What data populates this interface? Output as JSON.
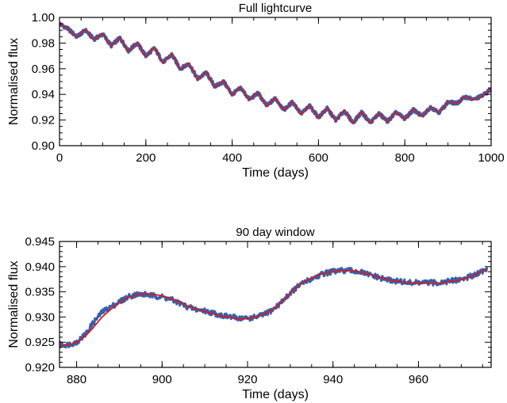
{
  "colors": {
    "observed": "#3a5fa8",
    "model": "#cc1f2a",
    "axis": "#000000",
    "background": "#ffffff"
  },
  "chart_data": [
    {
      "type": "line",
      "title": "Full lightcurve",
      "xlabel": "Time (days)",
      "ylabel": "Normalised flux",
      "xlim": [
        0,
        1000
      ],
      "ylim": [
        0.9,
        1.0
      ],
      "xticks": [
        0,
        200,
        400,
        600,
        800,
        1000
      ],
      "xtick_labels": [
        "0",
        "200",
        "400",
        "600",
        "800",
        "1000"
      ],
      "yticks": [
        0.9,
        0.92,
        0.94,
        0.96,
        0.98,
        1.0
      ],
      "ytick_labels": [
        "0.90",
        "0.92",
        "0.94",
        "0.96",
        "0.98",
        "1.00"
      ],
      "grid": false,
      "series": [
        {
          "kind": "observed",
          "x": [
            0,
            20,
            40,
            60,
            80,
            100,
            120,
            140,
            160,
            180,
            200,
            220,
            240,
            260,
            280,
            300,
            320,
            340,
            360,
            380,
            400,
            420,
            440,
            460,
            480,
            500,
            520,
            540,
            560,
            580,
            600,
            620,
            640,
            660,
            680,
            700,
            720,
            740,
            760,
            780,
            800,
            820,
            840,
            860,
            880,
            900,
            920,
            940,
            960,
            980,
            1000
          ],
          "y": [
            0.995,
            0.991,
            0.985,
            0.99,
            0.983,
            0.987,
            0.978,
            0.984,
            0.974,
            0.98,
            0.97,
            0.976,
            0.965,
            0.971,
            0.96,
            0.964,
            0.952,
            0.957,
            0.946,
            0.95,
            0.94,
            0.945,
            0.936,
            0.941,
            0.931,
            0.937,
            0.928,
            0.934,
            0.925,
            0.931,
            0.922,
            0.929,
            0.92,
            0.927,
            0.918,
            0.926,
            0.918,
            0.925,
            0.919,
            0.926,
            0.921,
            0.928,
            0.923,
            0.93,
            0.926,
            0.934,
            0.933,
            0.938,
            0.936,
            0.939,
            0.944
          ]
        },
        {
          "kind": "model",
          "x": [
            0,
            20,
            40,
            60,
            80,
            100,
            120,
            140,
            160,
            180,
            200,
            220,
            240,
            260,
            280,
            300,
            320,
            340,
            360,
            380,
            400,
            420,
            440,
            460,
            480,
            500,
            520,
            540,
            560,
            580,
            600,
            620,
            640,
            660,
            680,
            700,
            720,
            740,
            760,
            780,
            800,
            820,
            840,
            860,
            880,
            900,
            920,
            940,
            960,
            980,
            1000
          ],
          "y": [
            0.995,
            0.991,
            0.985,
            0.99,
            0.983,
            0.987,
            0.978,
            0.984,
            0.974,
            0.98,
            0.97,
            0.976,
            0.965,
            0.971,
            0.96,
            0.964,
            0.952,
            0.957,
            0.946,
            0.95,
            0.94,
            0.945,
            0.936,
            0.941,
            0.931,
            0.937,
            0.928,
            0.934,
            0.925,
            0.931,
            0.922,
            0.929,
            0.92,
            0.927,
            0.918,
            0.926,
            0.918,
            0.925,
            0.919,
            0.926,
            0.921,
            0.928,
            0.923,
            0.93,
            0.926,
            0.934,
            0.933,
            0.938,
            0.936,
            0.939,
            0.944
          ]
        }
      ]
    },
    {
      "type": "line",
      "title": "90 day window",
      "xlabel": "Time (days)",
      "ylabel": "Normalised flux",
      "xlim": [
        876,
        977
      ],
      "ylim": [
        0.92,
        0.945
      ],
      "xticks": [
        880,
        900,
        920,
        940,
        960
      ],
      "xtick_labels": [
        "880",
        "900",
        "920",
        "940",
        "960"
      ],
      "yticks": [
        0.92,
        0.925,
        0.93,
        0.935,
        0.94,
        0.945
      ],
      "ytick_labels": [
        "0.920",
        "0.925",
        "0.930",
        "0.935",
        "0.940",
        "0.945"
      ],
      "grid": false,
      "series": [
        {
          "kind": "observed",
          "x": [
            876,
            878,
            880,
            882,
            884,
            886,
            888,
            890,
            892,
            894,
            896,
            898,
            900,
            902,
            904,
            906,
            908,
            910,
            912,
            914,
            916,
            918,
            920,
            922,
            924,
            926,
            928,
            930,
            932,
            934,
            936,
            938,
            940,
            942,
            944,
            946,
            948,
            950,
            952,
            954,
            956,
            958,
            960,
            962,
            964,
            966,
            968,
            970,
            972,
            974,
            976
          ],
          "y": [
            0.9245,
            0.9245,
            0.925,
            0.9265,
            0.929,
            0.931,
            0.932,
            0.933,
            0.934,
            0.9345,
            0.9345,
            0.9342,
            0.934,
            0.9335,
            0.9328,
            0.932,
            0.9315,
            0.9312,
            0.9308,
            0.9303,
            0.93,
            0.9298,
            0.9297,
            0.93,
            0.9305,
            0.9315,
            0.933,
            0.9348,
            0.9362,
            0.9372,
            0.938,
            0.9387,
            0.939,
            0.9392,
            0.9392,
            0.939,
            0.9385,
            0.938,
            0.9375,
            0.9372,
            0.937,
            0.9368,
            0.9368,
            0.9368,
            0.9368,
            0.937,
            0.9372,
            0.9375,
            0.938,
            0.9388,
            0.9395
          ]
        },
        {
          "kind": "model",
          "x": [
            876,
            878,
            880,
            882,
            884,
            886,
            888,
            890,
            892,
            894,
            896,
            898,
            900,
            902,
            904,
            906,
            908,
            910,
            912,
            914,
            916,
            918,
            920,
            922,
            924,
            926,
            928,
            930,
            932,
            934,
            936,
            938,
            940,
            942,
            944,
            946,
            948,
            950,
            952,
            954,
            956,
            958,
            960,
            962,
            964,
            966,
            968,
            970,
            972,
            974,
            976
          ],
          "y": [
            0.9245,
            0.9245,
            0.925,
            0.9262,
            0.928,
            0.93,
            0.9315,
            0.9328,
            0.9338,
            0.9344,
            0.9346,
            0.9345,
            0.9342,
            0.9337,
            0.933,
            0.9322,
            0.9316,
            0.9311,
            0.9306,
            0.9302,
            0.9299,
            0.9297,
            0.9297,
            0.93,
            0.9306,
            0.9316,
            0.933,
            0.9347,
            0.9362,
            0.9373,
            0.9381,
            0.9387,
            0.939,
            0.9392,
            0.9392,
            0.939,
            0.9386,
            0.9381,
            0.9376,
            0.9372,
            0.937,
            0.9368,
            0.9367,
            0.9367,
            0.9367,
            0.9369,
            0.9371,
            0.9374,
            0.9379,
            0.9387,
            0.9394
          ]
        }
      ]
    }
  ]
}
